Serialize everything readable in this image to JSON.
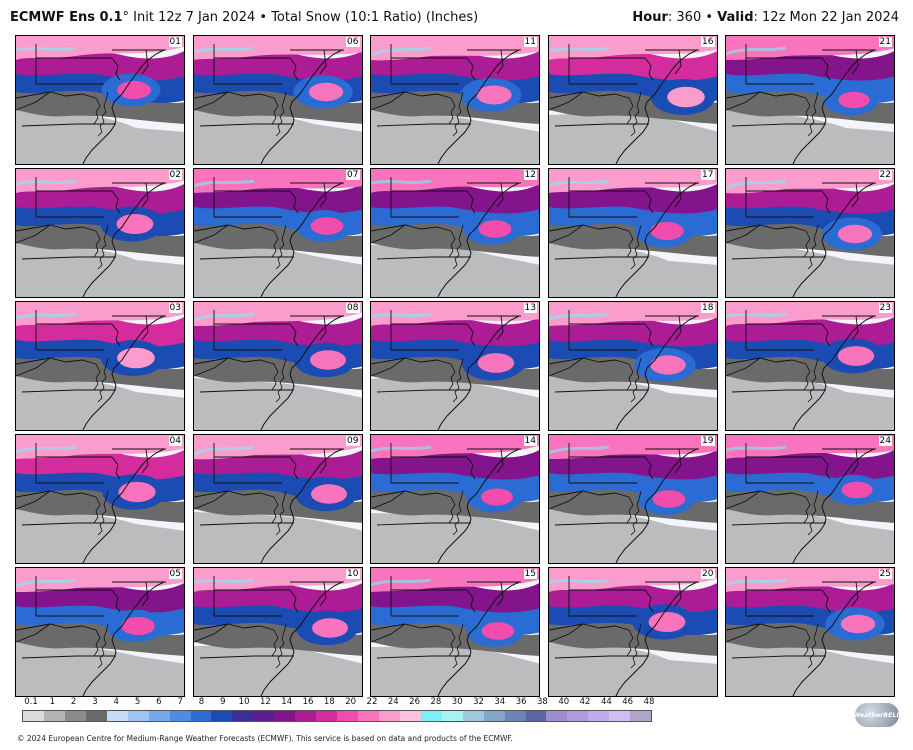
{
  "header": {
    "model": "ECMWF Ens 0.1",
    "degree": "°",
    "init": "Init 12z 7 Jan 2024",
    "bullet": "•",
    "product": "Total Snow (10:1 Ratio) (Inches)",
    "hour_label": "Hour",
    "hour_value": ": 360",
    "valid_label": "Valid",
    "valid_value": ": 12z Mon 22 Jan 2024"
  },
  "panels": [
    {
      "member": "01",
      "row": 0,
      "col": 0,
      "intensity": 0.62
    },
    {
      "member": "06",
      "row": 0,
      "col": 1,
      "intensity": 0.64
    },
    {
      "member": "11",
      "row": 0,
      "col": 2,
      "intensity": 0.7
    },
    {
      "member": "16",
      "row": 0,
      "col": 3,
      "intensity": 0.85
    },
    {
      "member": "21",
      "row": 0,
      "col": 4,
      "intensity": 0.45
    },
    {
      "member": "02",
      "row": 1,
      "col": 0,
      "intensity": 0.8
    },
    {
      "member": "07",
      "row": 1,
      "col": 1,
      "intensity": 0.55
    },
    {
      "member": "12",
      "row": 1,
      "col": 2,
      "intensity": 0.55
    },
    {
      "member": "17",
      "row": 1,
      "col": 3,
      "intensity": 0.6
    },
    {
      "member": "22",
      "row": 1,
      "col": 4,
      "intensity": 0.65
    },
    {
      "member": "03",
      "row": 2,
      "col": 0,
      "intensity": 0.85
    },
    {
      "member": "08",
      "row": 2,
      "col": 1,
      "intensity": 0.75
    },
    {
      "member": "13",
      "row": 2,
      "col": 2,
      "intensity": 0.78
    },
    {
      "member": "18",
      "row": 2,
      "col": 3,
      "intensity": 0.72
    },
    {
      "member": "23",
      "row": 2,
      "col": 4,
      "intensity": 0.78
    },
    {
      "member": "04",
      "row": 3,
      "col": 0,
      "intensity": 0.82
    },
    {
      "member": "09",
      "row": 3,
      "col": 1,
      "intensity": 0.75
    },
    {
      "member": "14",
      "row": 3,
      "col": 2,
      "intensity": 0.5
    },
    {
      "member": "19",
      "row": 3,
      "col": 3,
      "intensity": 0.55
    },
    {
      "member": "24",
      "row": 3,
      "col": 4,
      "intensity": 0.45
    },
    {
      "member": "05",
      "row": 4,
      "col": 0,
      "intensity": 0.6
    },
    {
      "member": "10",
      "row": 4,
      "col": 1,
      "intensity": 0.75
    },
    {
      "member": "15",
      "row": 4,
      "col": 2,
      "intensity": 0.55
    },
    {
      "member": "20",
      "row": 4,
      "col": 3,
      "intensity": 0.8
    },
    {
      "member": "25",
      "row": 4,
      "col": 4,
      "intensity": 0.65
    }
  ],
  "legend": {
    "ticks": [
      "0.1",
      "1",
      "2",
      "3",
      "4",
      "5",
      "6",
      "7",
      "8",
      "9",
      "10",
      "12",
      "14",
      "16",
      "18",
      "20",
      "22",
      "24",
      "26",
      "28",
      "30",
      "32",
      "34",
      "36",
      "38",
      "40",
      "42",
      "44",
      "46",
      "48"
    ],
    "colors": [
      "#dcdcdc",
      "#b4b4b4",
      "#8c8c8c",
      "#6a6a6a",
      "#c4dcf8",
      "#9cc4f4",
      "#74a8ec",
      "#4c8ce4",
      "#2a6cd4",
      "#1a4cb4",
      "#3c2c9c",
      "#5c1c94",
      "#84148c",
      "#ac1c94",
      "#d42c9c",
      "#f24cac",
      "#f874bc",
      "#fa9ccc",
      "#fcc4dc",
      "#7cf0f4",
      "#a4f4f4",
      "#a0c8dc",
      "#84a4c8",
      "#6c84b8",
      "#5c64a8",
      "#9c8cd0",
      "#ae9cdc",
      "#c0acec",
      "#d2bcf4",
      "#b0a4c8"
    ]
  },
  "logo": {
    "text": "WeatherBELL"
  },
  "footer": {
    "text": "© 2024 European Centre for Medium-Range Weather Forecasts (ECMWF). This service is based on data and products of the ECMWF."
  }
}
